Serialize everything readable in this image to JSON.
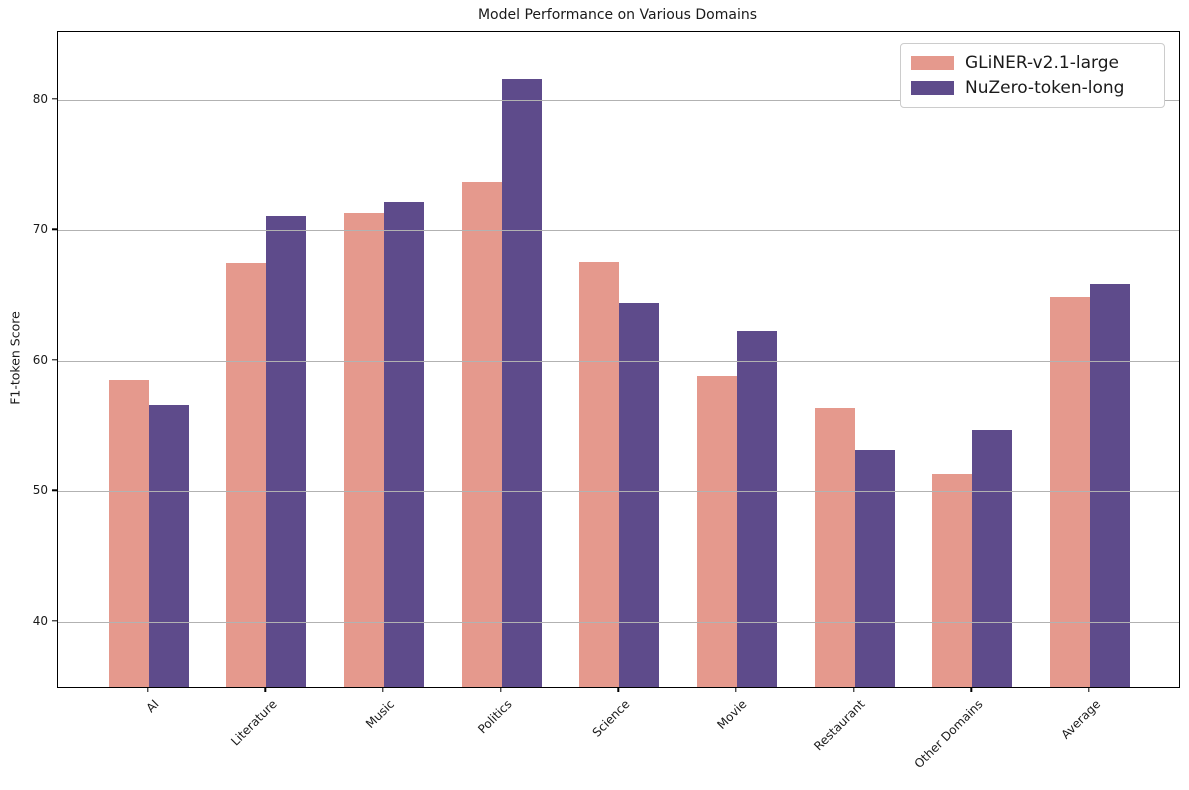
{
  "chart_data": {
    "type": "bar",
    "title": "Model Performance on Various Domains",
    "xlabel": "",
    "ylabel": "F1-token Score",
    "categories": [
      "AI",
      "Literature",
      "Music",
      "Politics",
      "Science",
      "Movie",
      "Restaurant",
      "Other Domains",
      "Average"
    ],
    "series": [
      {
        "name": "GLiNER-v2.1-large",
        "color": "#e5998d",
        "values": [
          58.5,
          67.5,
          71.3,
          73.7,
          67.6,
          58.8,
          56.4,
          51.3,
          64.9
        ]
      },
      {
        "name": "NuZero-token-long",
        "color": "#5e4b8b",
        "values": [
          56.6,
          71.1,
          72.2,
          81.6,
          64.4,
          62.3,
          53.2,
          54.7,
          65.9
        ]
      }
    ],
    "ylim": [
      35,
      85.2
    ],
    "yticks": [
      40,
      50,
      60,
      70,
      80
    ],
    "grid": "horizontal-over-bars",
    "legend_position": "upper-right"
  },
  "colors": {
    "grid": "#b2b2b2",
    "spine": "#000000",
    "legend_border": "#cccccc",
    "background": "#ffffff"
  }
}
